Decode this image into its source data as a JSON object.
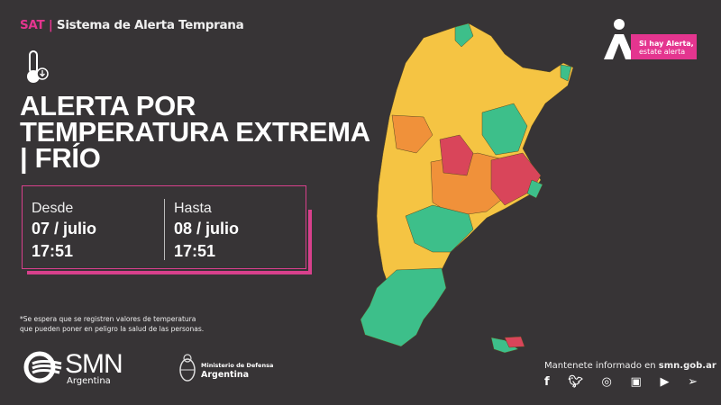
{
  "header": {
    "brand": "SAT",
    "separator": "|",
    "system": "Sistema de Alerta Temprana"
  },
  "alert": {
    "icon": "thermometer-down-icon",
    "title_line1": "ALERTA POR",
    "title_line2": "TEMPERATURA EXTREMA",
    "title_line3": "| FRÍO"
  },
  "period": {
    "from_label": "Desde",
    "from_date": "07 / julio",
    "from_time": "17:51",
    "to_label": "Hasta",
    "to_date": "08 / julio",
    "to_time": "17:51"
  },
  "note": {
    "line1": "*Se espera que se registren valores de temperatura",
    "line2": "que pueden poner en peligro la salud de las personas."
  },
  "logos": {
    "smn": "SMN",
    "smn_sub": "Argentina",
    "ministry_line1": "Ministerio de Defensa",
    "ministry_line2": "Argentina"
  },
  "campaign": {
    "line1": "Si hay Alerta,",
    "line2": "estate alerta"
  },
  "footer": {
    "text": "Mantenete informado en ",
    "url": "smn.gob.ar",
    "social": [
      "facebook-icon",
      "twitter-icon",
      "instagram-icon",
      "tv-icon",
      "youtube-icon",
      "telegram-icon"
    ]
  },
  "colors": {
    "background": "#373436",
    "accent": "#e4358f",
    "level_yellow": "#f5c443",
    "level_orange": "#f0913a",
    "level_red": "#d9455a",
    "level_green": "#3dbf8a"
  }
}
